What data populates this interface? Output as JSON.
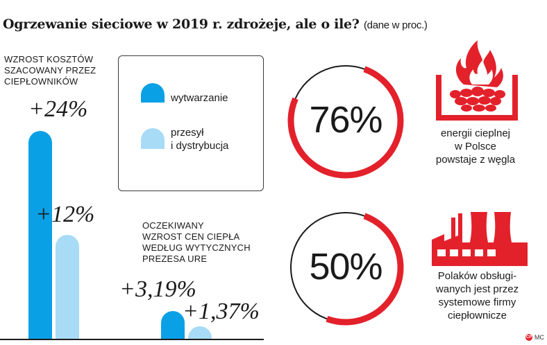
{
  "header": {
    "title": "Ogrzewanie sieciowe w 2019 r. zdrożeje, ale o ile?",
    "unit": "(dane w proc.)"
  },
  "left_caption": [
    "WZROST KOSZTÓW",
    "SZACOWANY PRZEZ",
    "CIEPŁOWNIKÓW"
  ],
  "mid_caption": [
    "OCZEKIWANY",
    "WZROST CEN CIEPŁA",
    "WEDŁUG WYTYCZNYCH",
    "PREZESA URE"
  ],
  "legend": {
    "items": [
      {
        "label": "wytwarzanie",
        "color": "#0aa0e6"
      },
      {
        "label_lines": [
          "przesył",
          "i dystrybucja"
        ],
        "color": "#a8dbf5"
      }
    ]
  },
  "chart_data": {
    "type": "bar",
    "groups": [
      {
        "name": "WZROST KOSZTÓW SZACOWANY PRZEZ CIEPŁOWNIKÓW",
        "series": [
          {
            "name": "wytwarzanie",
            "value": 24,
            "label": "+24%"
          },
          {
            "name": "przesył i dystrybucja",
            "value": 12,
            "label": "+12%"
          }
        ]
      },
      {
        "name": "OCZEKIWANY WZROST CEN CIEPŁA WEDŁUG WYTYCZNYCH PREZESA URE",
        "series": [
          {
            "name": "wytwarzanie",
            "value": 3.19,
            "label": "+3,19%"
          },
          {
            "name": "przesył i dystrybucja",
            "value": 1.37,
            "label": "+1,37%"
          }
        ]
      }
    ],
    "colors": {
      "wytwarzanie": "#0aa0e6",
      "przesył i dystrybucja": "#a8dbf5"
    }
  },
  "stats": [
    {
      "value": 76,
      "label": "76%",
      "desc": [
        "energii cieplnej",
        "w Polsce",
        "powstaje z węgla"
      ],
      "icon": "fire-coal-icon"
    },
    {
      "value": 50,
      "label": "50%",
      "desc": [
        "Polaków obsługi-",
        "wanych jest przez",
        "systemowe firmy",
        "ciepłownicze"
      ],
      "icon": "power-plant-icon"
    }
  ],
  "accent_color": "#e3212b",
  "footer": {
    "logo": "CP",
    "author": "MC"
  }
}
